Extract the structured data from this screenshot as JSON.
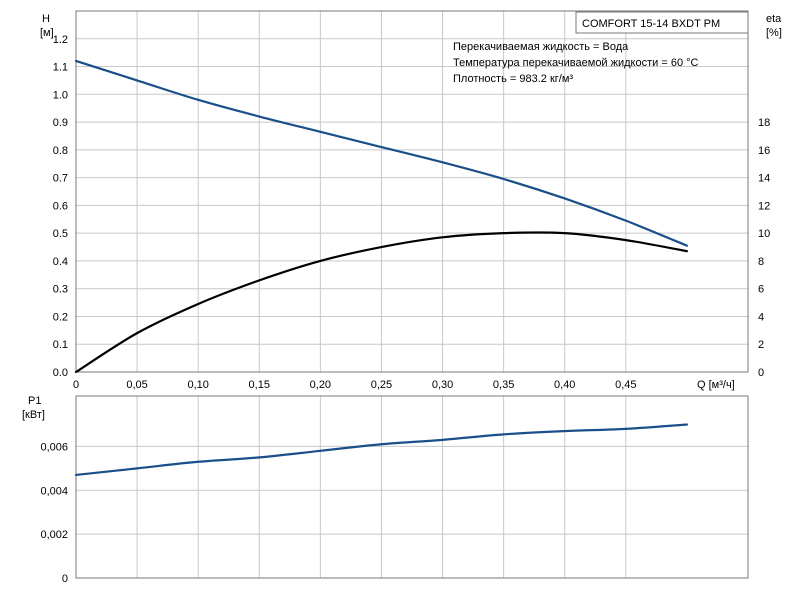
{
  "chart_data": [
    {
      "type": "line",
      "title": "COMFORT 15-14 BXDT PM",
      "notes": [
        "Перекачиваемая жидкость = Вода",
        "Температура перекачиваемой жидкости = 60 °C",
        "Плотность = 983.2 кг/м³"
      ],
      "xlabel": "Q [м³/ч]",
      "xlim": [
        0,
        0.55
      ],
      "x_ticks": [
        0,
        0.05,
        0.1,
        0.15,
        0.2,
        0.25,
        0.3,
        0.35,
        0.4,
        0.45
      ],
      "x_tick_labels": [
        "0",
        "0,05",
        "0,10",
        "0,15",
        "0,20",
        "0,25",
        "0,30",
        "0,35",
        "0,40",
        "0,45"
      ],
      "ylabel_left": "H",
      "ylabel_left_unit": "[м]",
      "ylim_left": [
        0,
        1.3
      ],
      "y_left_ticks": [
        0,
        0.1,
        0.2,
        0.3,
        0.4,
        0.5,
        0.6,
        0.7,
        0.8,
        0.9,
        1.0,
        1.1,
        1.2
      ],
      "y_left_tick_labels": [
        "0.0",
        "0.1",
        "0.2",
        "0.3",
        "0.4",
        "0.5",
        "0.6",
        "0.7",
        "0.8",
        "0.9",
        "1.0",
        "1.1",
        "1.2"
      ],
      "ylabel_right": "eta",
      "ylabel_right_unit": "[%]",
      "ylim_right": [
        0,
        26
      ],
      "y_right_ticks": [
        0,
        2,
        4,
        6,
        8,
        10,
        12,
        14,
        16,
        18
      ],
      "y_right_tick_labels": [
        "0",
        "2",
        "4",
        "6",
        "8",
        "10",
        "12",
        "14",
        "16",
        "18"
      ],
      "grid": true,
      "series": [
        {
          "axis": "left",
          "color": "#1b4f8a",
          "x": [
            0,
            0.05,
            0.1,
            0.15,
            0.2,
            0.25,
            0.3,
            0.35,
            0.4,
            0.45,
            0.5
          ],
          "values": [
            1.12,
            1.05,
            0.98,
            0.92,
            0.865,
            0.81,
            0.755,
            0.695,
            0.625,
            0.545,
            0.455
          ]
        },
        {
          "axis": "right",
          "color": "#000000",
          "x": [
            0,
            0.05,
            0.1,
            0.15,
            0.2,
            0.25,
            0.3,
            0.35,
            0.4,
            0.45,
            0.5
          ],
          "values": [
            0,
            2.8,
            4.9,
            6.6,
            8,
            9,
            9.7,
            10,
            10,
            9.5,
            8.7
          ]
        }
      ]
    },
    {
      "type": "line",
      "ylabel": "P1",
      "ylabel_unit": "[кВт]",
      "xlim": [
        0,
        0.55
      ],
      "ylim": [
        0,
        0.0083
      ],
      "y_ticks": [
        0,
        0.002,
        0.004,
        0.006
      ],
      "y_tick_labels": [
        "0",
        "0,002",
        "0,004",
        "0,006"
      ],
      "grid": true,
      "series": [
        {
          "color": "#1b4f8a",
          "x": [
            0,
            0.05,
            0.1,
            0.15,
            0.2,
            0.25,
            0.3,
            0.35,
            0.4,
            0.45,
            0.5
          ],
          "values": [
            0.0047,
            0.005,
            0.0053,
            0.0055,
            0.0058,
            0.0061,
            0.0063,
            0.00655,
            0.0067,
            0.0068,
            0.007
          ]
        }
      ]
    }
  ]
}
